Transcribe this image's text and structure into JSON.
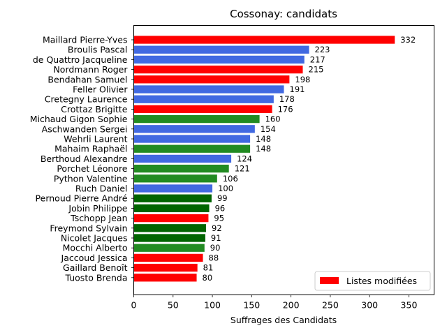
{
  "chart_data": {
    "type": "bar",
    "orientation": "horizontal",
    "title": "Cossonay: candidats",
    "xlabel": "Suffrages des Candidats",
    "ylabel": "",
    "xlim": [
      0,
      382
    ],
    "xticks": [
      0,
      50,
      100,
      150,
      200,
      250,
      300,
      350
    ],
    "grid": false,
    "legend": {
      "position": "bottom-right",
      "entries": [
        {
          "label": "Listes modifiées",
          "color": "#ff0000"
        }
      ]
    },
    "bars": [
      {
        "name": "Maillard Pierre-Yves",
        "value": 332,
        "color": "#ff0000"
      },
      {
        "name": "Broulis Pascal",
        "value": 223,
        "color": "#4169e1"
      },
      {
        "name": "de Quattro Jacqueline",
        "value": 217,
        "color": "#4169e1"
      },
      {
        "name": "Nordmann Roger",
        "value": 215,
        "color": "#ff0000"
      },
      {
        "name": "Bendahan Samuel",
        "value": 198,
        "color": "#ff0000"
      },
      {
        "name": "Feller Olivier",
        "value": 191,
        "color": "#4169e1"
      },
      {
        "name": "Cretegny Laurence",
        "value": 178,
        "color": "#4169e1"
      },
      {
        "name": "Crottaz Brigitte",
        "value": 176,
        "color": "#ff0000"
      },
      {
        "name": "Michaud Gigon Sophie",
        "value": 160,
        "color": "#228b22"
      },
      {
        "name": "Aschwanden Sergei",
        "value": 154,
        "color": "#4169e1"
      },
      {
        "name": "Wehrli Laurent",
        "value": 148,
        "color": "#4169e1"
      },
      {
        "name": "Mahaim Raphaël",
        "value": 148,
        "color": "#228b22"
      },
      {
        "name": "Berthoud Alexandre",
        "value": 124,
        "color": "#4169e1"
      },
      {
        "name": "Porchet Léonore",
        "value": 121,
        "color": "#228b22"
      },
      {
        "name": "Python Valentine",
        "value": 106,
        "color": "#228b22"
      },
      {
        "name": "Ruch Daniel",
        "value": 100,
        "color": "#4169e1"
      },
      {
        "name": "Pernoud Pierre André",
        "value": 99,
        "color": "#006400"
      },
      {
        "name": "Jobin Philippe",
        "value": 96,
        "color": "#006400"
      },
      {
        "name": "Tschopp Jean",
        "value": 95,
        "color": "#ff0000"
      },
      {
        "name": "Freymond Sylvain",
        "value": 92,
        "color": "#006400"
      },
      {
        "name": "Nicolet Jacques",
        "value": 91,
        "color": "#006400"
      },
      {
        "name": "Mocchi Alberto",
        "value": 90,
        "color": "#228b22"
      },
      {
        "name": "Jaccoud Jessica",
        "value": 88,
        "color": "#ff0000"
      },
      {
        "name": "Gaillard Benoît",
        "value": 81,
        "color": "#ff0000"
      },
      {
        "name": "Tuosto Brenda",
        "value": 80,
        "color": "#ff0000"
      }
    ]
  }
}
